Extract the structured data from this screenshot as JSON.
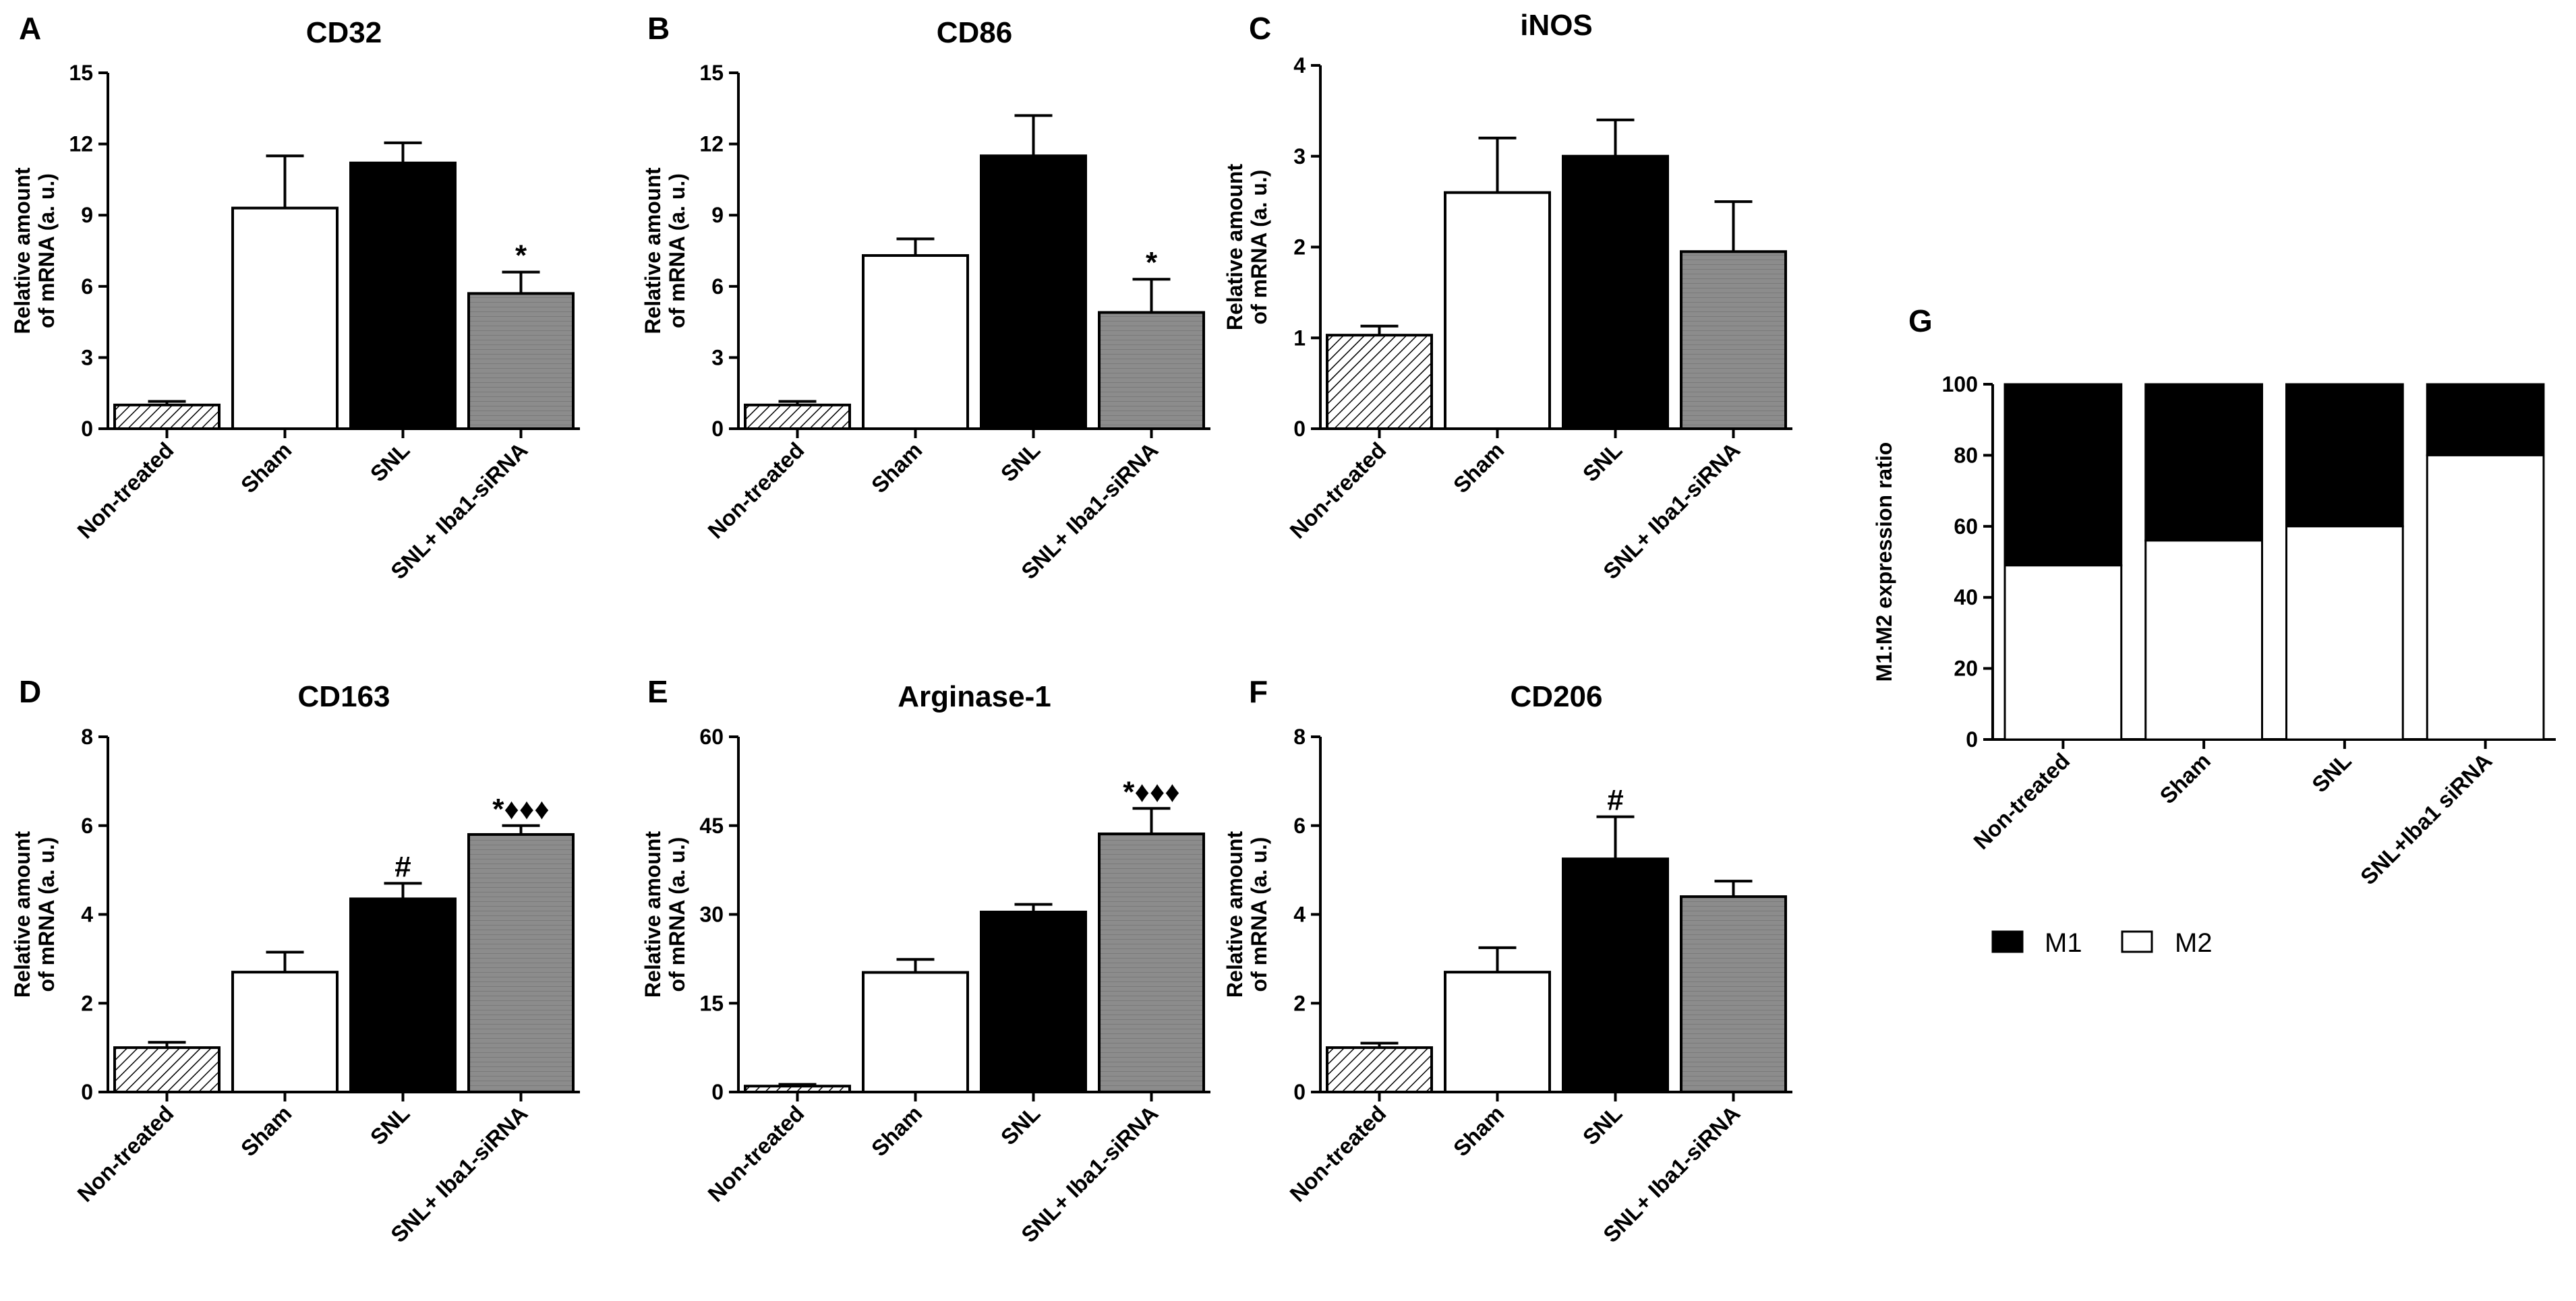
{
  "figure": {
    "legend": {
      "m1": "M1",
      "m2": "M2"
    }
  },
  "chart_data": [
    {
      "id": "A",
      "letter": "A",
      "type": "bar",
      "title": "CD32",
      "ylabel": [
        "Relative amount",
        "of mRNA (a. u.)"
      ],
      "categories": [
        "Non-treated",
        "Sham",
        "SNL",
        "SNL+ Iba1-siRNA"
      ],
      "values": [
        1.0,
        9.3,
        11.2,
        5.7
      ],
      "errors": [
        0.15,
        2.2,
        0.85,
        0.9
      ],
      "ylim": [
        0,
        15
      ],
      "yticks": [
        0,
        3,
        6,
        9,
        12,
        15
      ],
      "yticklabels": [
        "0",
        "3",
        "6",
        "9",
        "12",
        "15"
      ],
      "annotations": [
        "",
        "",
        "",
        "*"
      ]
    },
    {
      "id": "B",
      "letter": "B",
      "type": "bar",
      "title": "CD86",
      "ylabel": [
        "Relative amount",
        "of mRNA (a. u.)"
      ],
      "categories": [
        "Non-treated",
        "Sham",
        "SNL",
        "SNL+ Iba1-siRNA"
      ],
      "values": [
        1.0,
        7.3,
        11.5,
        4.9
      ],
      "errors": [
        0.15,
        0.7,
        1.7,
        1.4
      ],
      "ylim": [
        0,
        15
      ],
      "yticks": [
        0,
        3,
        6,
        9,
        12,
        15
      ],
      "yticklabels": [
        "0",
        "3",
        "6",
        "9",
        "12",
        "15"
      ],
      "annotations": [
        "",
        "",
        "",
        "*"
      ]
    },
    {
      "id": "C",
      "letter": "C",
      "type": "bar",
      "title": "iNOS",
      "ylabel": [
        "Relative amount",
        "of mRNA (a. u.)"
      ],
      "categories": [
        "Non-treated",
        "Sham",
        "SNL",
        "SNL+ Iba1-siRNA"
      ],
      "values": [
        1.03,
        2.6,
        3.0,
        1.95
      ],
      "errors": [
        0.1,
        0.6,
        0.4,
        0.55
      ],
      "ylim": [
        0,
        4
      ],
      "yticks": [
        0,
        1,
        2,
        3,
        4
      ],
      "yticklabels": [
        "0",
        "1",
        "2",
        "3",
        "4"
      ],
      "annotations": [
        "",
        "",
        "",
        ""
      ]
    },
    {
      "id": "D",
      "letter": "D",
      "type": "bar",
      "title": "CD163",
      "ylabel": [
        "Relative amount",
        "of mRNA (a. u.)"
      ],
      "categories": [
        "Non-treated",
        "Sham",
        "SNL",
        "SNL+ Iba1-siRNA"
      ],
      "values": [
        1.0,
        2.7,
        4.35,
        5.8
      ],
      "errors": [
        0.12,
        0.45,
        0.35,
        0.2
      ],
      "ylim": [
        0,
        8
      ],
      "yticks": [
        0,
        2,
        4,
        6,
        8
      ],
      "yticklabels": [
        "0",
        "2",
        "4",
        "6",
        "8"
      ],
      "annotations": [
        "",
        "",
        "#",
        "*♦♦♦"
      ]
    },
    {
      "id": "E",
      "letter": "E",
      "type": "bar",
      "title": "Arginase-1",
      "ylabel": [
        "Relative amount",
        "of mRNA (a. u.)"
      ],
      "categories": [
        "Non-treated",
        "Sham",
        "SNL",
        "SNL+ Iba1-siRNA"
      ],
      "values": [
        1.0,
        20.2,
        30.4,
        43.6
      ],
      "errors": [
        0.3,
        2.2,
        1.3,
        4.3
      ],
      "ylim": [
        0,
        60
      ],
      "yticks": [
        0,
        15,
        30,
        45,
        60
      ],
      "yticklabels": [
        "0",
        "15",
        "30",
        "45",
        "60"
      ],
      "annotations": [
        "",
        "",
        "",
        "*♦♦♦"
      ]
    },
    {
      "id": "F",
      "letter": "F",
      "type": "bar",
      "title": "CD206",
      "ylabel": [
        "Relative amount",
        "of mRNA (a. u.)"
      ],
      "categories": [
        "Non-treated",
        "Sham",
        "SNL",
        "SNL+ Iba1-siRNA"
      ],
      "values": [
        1.0,
        2.7,
        5.25,
        4.4
      ],
      "errors": [
        0.1,
        0.55,
        0.95,
        0.35
      ],
      "ylim": [
        0,
        8
      ],
      "yticks": [
        0,
        2,
        4,
        6,
        8
      ],
      "yticklabels": [
        "0",
        "2",
        "4",
        "6",
        "8"
      ],
      "annotations": [
        "",
        "",
        "#",
        ""
      ]
    },
    {
      "id": "G",
      "letter": "G",
      "type": "stacked-bar",
      "title": "",
      "ylabel": [
        "M1:M2 expression ratio"
      ],
      "categories": [
        "Non-treated",
        "Sham",
        "SNL",
        "SNL+Iba1 siRNA"
      ],
      "series": [
        {
          "name": "M2",
          "values": [
            49,
            56,
            60,
            80
          ]
        },
        {
          "name": "M1",
          "values": [
            51,
            44,
            40,
            20
          ]
        }
      ],
      "ylim": [
        0,
        100
      ],
      "yticks": [
        0,
        20,
        40,
        60,
        80,
        100
      ],
      "yticklabels": [
        "0",
        "20",
        "40",
        "60",
        "80",
        "100"
      ],
      "legend_position": "bottom"
    }
  ]
}
